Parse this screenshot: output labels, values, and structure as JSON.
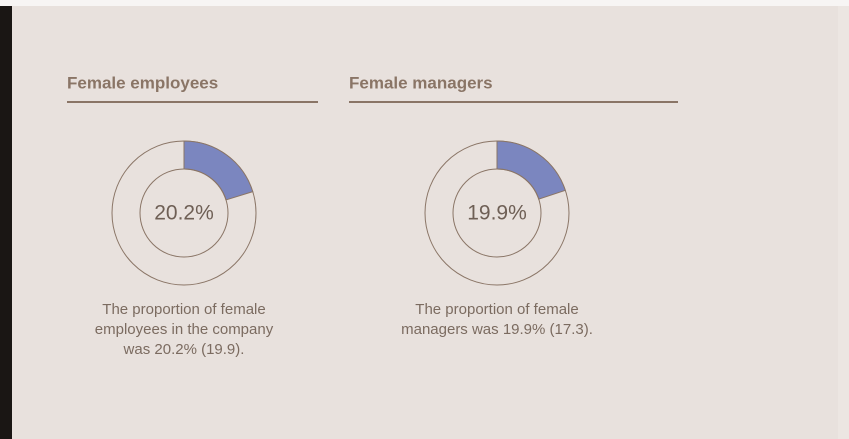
{
  "chart_data": [
    {
      "type": "pie",
      "title": "Female employees",
      "values": [
        20.2
      ],
      "value_labels": [
        "20.2%"
      ],
      "color": "#7b86bf",
      "caption": [
        "The proportion of female",
        "employees in the company",
        "was 20.2% (19.9)."
      ]
    },
    {
      "type": "pie",
      "title": "Female managers",
      "values": [
        19.9
      ],
      "value_labels": [
        "19.9%"
      ],
      "color": "#7b86bf",
      "caption": [
        "The proportion of female",
        "managers was 19.9% (17.3)."
      ]
    }
  ]
}
